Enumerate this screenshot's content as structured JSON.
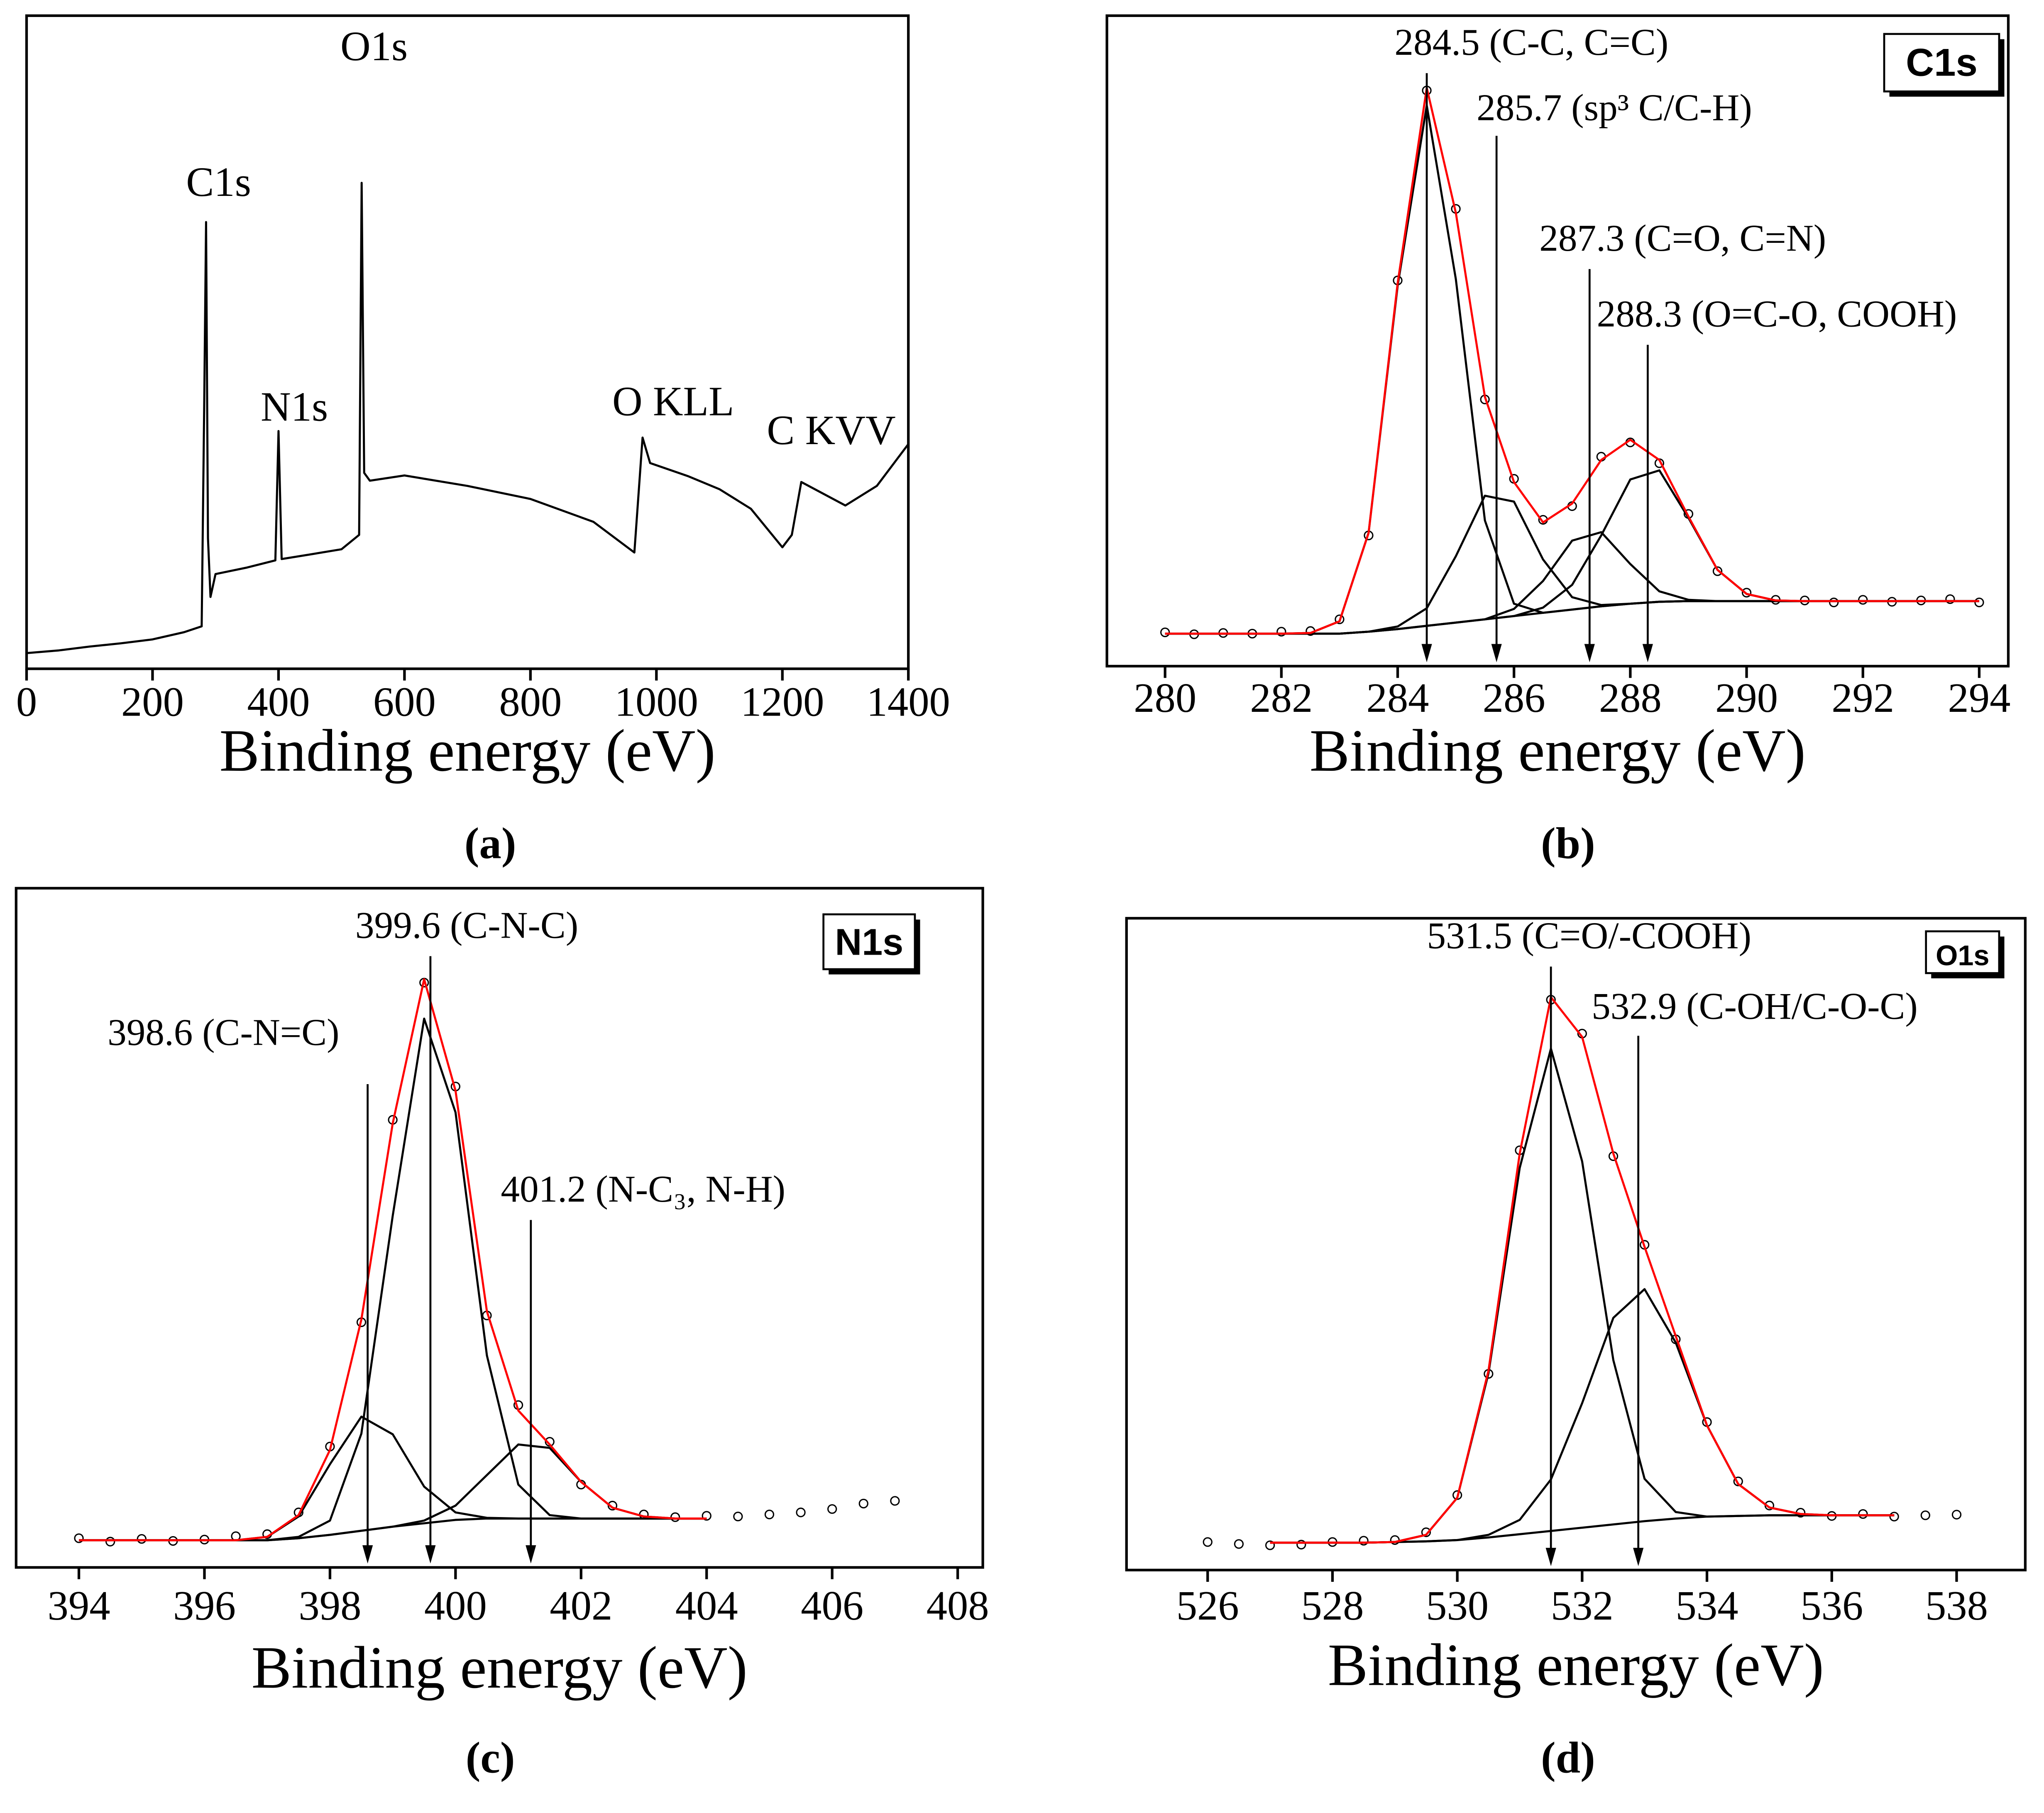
{
  "chart_data": [
    {
      "type": "line",
      "caption": "(a)",
      "xlabel": "Binding energy (eV)",
      "xlim": [
        0,
        1400
      ],
      "ylim": [
        0,
        100
      ],
      "xticks": [
        0,
        200,
        400,
        600,
        800,
        1000,
        1200,
        1400
      ],
      "grid": false,
      "x": [
        0,
        50,
        100,
        150,
        200,
        250,
        278,
        282,
        285,
        288,
        292,
        300,
        350,
        395,
        400,
        405,
        450,
        500,
        528,
        532,
        536,
        545,
        600,
        700,
        800,
        900,
        965,
        978,
        990,
        1050,
        1100,
        1150,
        1200,
        1215,
        1230,
        1300,
        1350,
        1400
      ],
      "series": [
        {
          "color": "#000000",
          "values": [
            2.4,
            2.8,
            3.4,
            3.9,
            4.5,
            5.6,
            6.5,
            40,
            68.4,
            20,
            11,
            14.5,
            15.5,
            16.6,
            36.4,
            16.8,
            17.5,
            18.3,
            20.5,
            74.4,
            30,
            28.8,
            29.6,
            28,
            26,
            22.5,
            17.8,
            35.4,
            31.5,
            29.5,
            27.5,
            24.5,
            18.6,
            20.5,
            28.6,
            25,
            28,
            34.4
          ]
        }
      ],
      "annotations": [
        {
          "text": "C1s"
        },
        {
          "text": "N1s"
        },
        {
          "text": "O1s"
        },
        {
          "text": "O KLL"
        },
        {
          "text": "C KVV"
        }
      ]
    },
    {
      "type": "line",
      "caption": "(b)",
      "badge": "C1s",
      "xlabel": "Binding energy (eV)",
      "xlim": [
        279,
        294.5
      ],
      "ylim": [
        0,
        100
      ],
      "xticks": [
        280,
        282,
        284,
        286,
        288,
        290,
        292,
        294
      ],
      "grid": false,
      "x": [
        280,
        280.5,
        281,
        281.5,
        282,
        282.5,
        283,
        283.5,
        284,
        284.5,
        285,
        285.5,
        286,
        286.5,
        287,
        287.5,
        288,
        288.5,
        289,
        289.5,
        290,
        290.5,
        291,
        291.5,
        292,
        292.5,
        293,
        293.5,
        294
      ],
      "series": [
        {
          "color": "#000000",
          "marker": "circle",
          "values": [
            5.2,
            4.9,
            5.1,
            5,
            5.3,
            5.4,
            7.2,
            20.1,
            59.3,
            88.5,
            70.3,
            41,
            28.8,
            22.5,
            24.6,
            32.2,
            34.4,
            31.2,
            23.4,
            14.6,
            11.3,
            10.2,
            10.1,
            9.8,
            10.2,
            9.9,
            10.1,
            10.3,
            9.8
          ]
        },
        {
          "color": "#000000",
          "values": [
            5,
            5,
            5,
            5,
            5,
            5,
            5,
            5.3,
            5.7,
            6.2,
            6.7,
            7.2,
            7.7,
            8.2,
            8.7,
            9.2,
            9.6,
            9.9,
            10,
            10,
            10,
            10,
            10,
            10,
            10,
            10,
            10,
            10,
            10
          ]
        },
        {
          "color": "#000000",
          "values": [
            5,
            5,
            5,
            5,
            5,
            5.1,
            6.9,
            20.5,
            58.5,
            86.2,
            59.5,
            22.4,
            9.6,
            8.2,
            8.7,
            9.2,
            9.6,
            9.9,
            10,
            10,
            10,
            10,
            10,
            10,
            10,
            10,
            10,
            10,
            10
          ]
        },
        {
          "color": "#000000",
          "values": [
            5,
            5,
            5,
            5,
            5,
            5,
            5,
            5.3,
            6.1,
            8.9,
            16.9,
            26.2,
            25.3,
            16.4,
            10.6,
            9.4,
            9.6,
            9.9,
            10,
            10,
            10,
            10,
            10,
            10,
            10,
            10,
            10,
            10,
            10
          ]
        },
        {
          "color": "#000000",
          "values": [
            5,
            5,
            5,
            5,
            5,
            5,
            5,
            5.3,
            5.7,
            6.2,
            6.7,
            7.2,
            8.8,
            13.1,
            19.3,
            20.6,
            15.7,
            11.5,
            10.2,
            10,
            10,
            10,
            10,
            10,
            10,
            10,
            10,
            10,
            10
          ]
        },
        {
          "color": "#000000",
          "values": [
            5,
            5,
            5,
            5,
            5,
            5,
            5,
            5.3,
            5.7,
            6.2,
            6.7,
            7.2,
            7.7,
            9.0,
            12.5,
            20.1,
            28.7,
            30.1,
            22.8,
            14.8,
            11.1,
            10.1,
            10,
            10,
            10,
            10,
            10,
            10,
            10
          ]
        },
        {
          "color": "#ff0000",
          "values": [
            5,
            5,
            5,
            5,
            5,
            5.1,
            6.9,
            20.5,
            58.9,
            88.9,
            69.7,
            41.4,
            28.3,
            22.1,
            25.0,
            31.7,
            34.8,
            31.7,
            23.0,
            14.8,
            11.1,
            10.1,
            10,
            10,
            10,
            10,
            10,
            10,
            10
          ]
        }
      ],
      "annotations": [
        {
          "text": "284.5 (C-C, C=C)",
          "x": 284.5
        },
        {
          "text": "285.7 (sp³ C/C-H)",
          "x": 285.7
        },
        {
          "text": "287.3 (C=O, C=N)",
          "x": 287.3
        },
        {
          "text": "288.3 (O=C-O, COOH)",
          "x": 288.3
        }
      ]
    },
    {
      "type": "line",
      "caption": "(c)",
      "badge": "N1s",
      "xlabel": "Binding energy (eV)",
      "xlim": [
        393,
        408.4
      ],
      "ylim": [
        0,
        100
      ],
      "xticks": [
        394,
        396,
        398,
        400,
        402,
        404,
        406,
        408
      ],
      "grid": false,
      "x": [
        394,
        394.5,
        395,
        395.5,
        396,
        396.5,
        397,
        397.5,
        398,
        398.5,
        399,
        399.5,
        400,
        400.5,
        401,
        401.5,
        402,
        402.5,
        403,
        403.5,
        404,
        404.5,
        405,
        405.5,
        406,
        406.5,
        407
      ],
      "series": [
        {
          "color": "#000000",
          "marker": "circle",
          "values": [
            4.3,
            3.8,
            4.2,
            3.9,
            4.1,
            4.6,
            4.9,
            8.1,
            17.8,
            36.1,
            65.9,
            86.1,
            70.8,
            37.1,
            23.9,
            18.5,
            12.2,
            9.1,
            7.8,
            7.4,
            7.6,
            7.5,
            7.8,
            8.1,
            8.6,
            9.4,
            9.8
          ]
        },
        {
          "color": "#000000",
          "values": [
            4,
            4,
            4,
            4,
            4,
            4,
            4,
            4.3,
            4.8,
            5.4,
            6,
            6.5,
            7,
            7.2,
            7.2,
            7.2,
            7.2,
            7.2,
            7.2,
            7.2,
            7.2,
            null,
            null,
            null,
            null,
            null,
            null
          ]
        },
        {
          "color": "#000000",
          "values": [
            4,
            4,
            4,
            4,
            4,
            4,
            4.5,
            7.5,
            15.2,
            22.2,
            19.6,
            11.9,
            8.1,
            7.3,
            7.2,
            7.2,
            7.2,
            7.2,
            7.2,
            7.2,
            7.2,
            null,
            null,
            null,
            null,
            null,
            null
          ]
        },
        {
          "color": "#000000",
          "values": [
            4,
            4,
            4,
            4,
            4,
            4,
            4,
            4.5,
            6.9,
            19.7,
            51.8,
            80.8,
            67,
            31.2,
            12.2,
            7.7,
            7.2,
            7.2,
            7.2,
            7.2,
            7.2,
            null,
            null,
            null,
            null,
            null,
            null
          ]
        },
        {
          "color": "#000000",
          "values": [
            4,
            4,
            4,
            4,
            4,
            4,
            4,
            4.3,
            4.8,
            5.4,
            6,
            6.9,
            9.1,
            13.6,
            18.1,
            17.6,
            12.6,
            8.8,
            7.5,
            7.2,
            7.2,
            null,
            null,
            null,
            null,
            null,
            null
          ]
        },
        {
          "color": "#ff0000",
          "values": [
            4,
            4,
            4,
            4,
            4,
            4,
            4.5,
            7.7,
            17.3,
            36.5,
            65.4,
            86.6,
            70.2,
            37.7,
            23.1,
            18.1,
            12.6,
            8.8,
            7.5,
            7.2,
            7.2,
            null,
            null,
            null,
            null,
            null,
            null
          ]
        }
      ],
      "annotations": [
        {
          "text": "399.6 (C-N-C)",
          "x": 399.6
        },
        {
          "text": "398.6 (C-N=C)",
          "x": 398.6
        },
        {
          "text": "401.2 (N-C₃, N-H)",
          "x": 401.2
        }
      ]
    },
    {
      "type": "line",
      "caption": "(d)",
      "badge": "O1s",
      "xlabel": "Binding energy (eV)",
      "xlim": [
        524.7,
        539.1
      ],
      "ylim": [
        0,
        100
      ],
      "xticks": [
        526,
        528,
        530,
        532,
        534,
        536,
        538
      ],
      "grid": false,
      "x": [
        526,
        526.5,
        527,
        527.5,
        528,
        528.5,
        529,
        529.5,
        530,
        530.5,
        531,
        531.5,
        532,
        532.5,
        533,
        533.5,
        534,
        534.5,
        535,
        535.5,
        536,
        536.5,
        537,
        537.5,
        538
      ],
      "series": [
        {
          "color": "#000000",
          "marker": "circle",
          "values": [
            4.3,
            4.0,
            3.8,
            3.9,
            4.3,
            4.5,
            4.6,
            5.8,
            11.5,
            30.1,
            64.4,
            87.5,
            82.3,
            63.5,
            49.9,
            35.4,
            22.7,
            13.6,
            9.9,
            8.8,
            8.3,
            8.6,
            8.2,
            8.4,
            8.5
          ]
        },
        {
          "color": "#000000",
          "values": [
            null,
            null,
            4.2,
            4.2,
            4.2,
            4.2,
            4.3,
            4.4,
            4.6,
            5,
            5.5,
            6,
            6.5,
            7,
            7.5,
            7.9,
            8.2,
            8.3,
            8.4,
            8.4,
            8.4,
            8.4,
            8.4,
            null,
            null
          ]
        },
        {
          "color": "#000000",
          "values": [
            null,
            null,
            4.2,
            4.2,
            4.2,
            4.2,
            4.3,
            5.4,
            11.1,
            30.2,
            61.7,
            80,
            62.7,
            32.2,
            14,
            8.9,
            8.2,
            8.3,
            8.4,
            8.4,
            8.4,
            8.4,
            8.4,
            null,
            null
          ]
        },
        {
          "color": "#000000",
          "values": [
            null,
            null,
            4.2,
            4.2,
            4.2,
            4.2,
            4.3,
            4.4,
            4.6,
            5.4,
            7.7,
            13.9,
            25.6,
            38.7,
            43.1,
            34.9,
            22.2,
            13.2,
            9.6,
            8.6,
            8.4,
            8.4,
            8.4,
            null,
            null
          ]
        },
        {
          "color": "#ff0000",
          "values": [
            null,
            null,
            4.2,
            4.2,
            4.2,
            4.2,
            4.3,
            5.4,
            11.1,
            30.6,
            63.9,
            87.9,
            81.8,
            63.9,
            49.6,
            35.9,
            22.2,
            13.2,
            9.6,
            8.6,
            8.4,
            8.4,
            8.4,
            null,
            null
          ]
        }
      ],
      "annotations": [
        {
          "text": "531.5 (C=O/-COOH)",
          "x": 531.5
        },
        {
          "text": "532.9 (C-OH/C-O-C)",
          "x": 532.9
        }
      ]
    }
  ]
}
